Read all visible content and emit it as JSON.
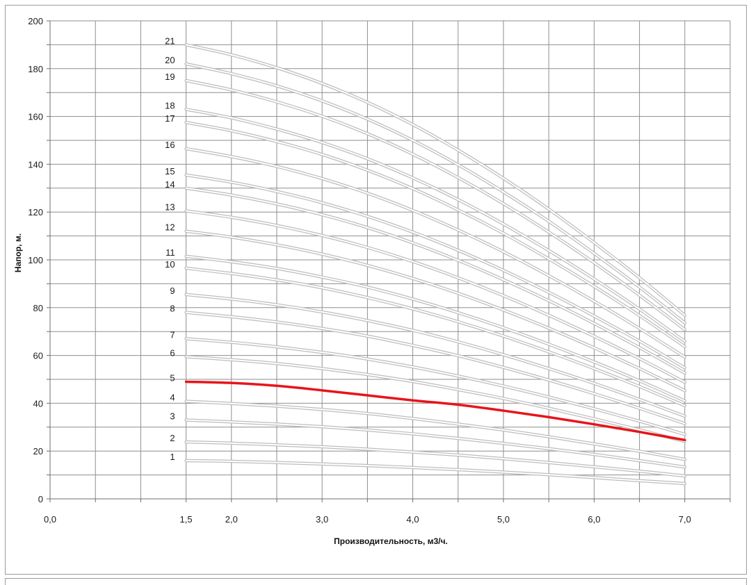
{
  "chart_data": {
    "type": "line",
    "xlabel": "Производительность, м3/ч.",
    "ylabel": "Напор, м.",
    "xlim": [
      0,
      7.5
    ],
    "ylim": [
      0,
      200
    ],
    "x_ticks": [
      "0,0",
      "1,5",
      "2,0",
      "3,0",
      "4,0",
      "5,0",
      "6,0",
      "7,0"
    ],
    "y_ticks": [
      "0",
      "20",
      "40",
      "60",
      "80",
      "100",
      "120",
      "140",
      "160",
      "180",
      "200"
    ],
    "grid": true,
    "highlight_color": "#e8141a",
    "curve_color": "#dcdcdc",
    "x": [
      1.5,
      2.0,
      2.5,
      3.0,
      3.5,
      4.0,
      4.5,
      5.0,
      5.5,
      6.0,
      6.5,
      7.0
    ],
    "series": [
      {
        "name": "1",
        "values": [
          16,
          15.7,
          15.2,
          14.6,
          13.9,
          13.1,
          12.2,
          11.2,
          10.1,
          8.9,
          7.6,
          6.4
        ]
      },
      {
        "name": "2",
        "values": [
          23.8,
          23.3,
          22.6,
          21.8,
          20.8,
          19.6,
          18.3,
          16.8,
          15.2,
          13.4,
          11.6,
          9.6
        ]
      },
      {
        "name": "3",
        "values": [
          33,
          32.2,
          31.3,
          30.2,
          28.8,
          27.2,
          25.3,
          23.2,
          21,
          18.6,
          16,
          13.3
        ]
      },
      {
        "name": "4",
        "values": [
          40.8,
          39.9,
          38.8,
          37.4,
          35.7,
          33.6,
          31.3,
          28.8,
          26,
          23,
          19.9,
          16.5
        ]
      },
      {
        "name": "5",
        "values": [
          49,
          48.5,
          47.3,
          45.4,
          43.3,
          41.2,
          39.4,
          36.9,
          34.2,
          31.2,
          28,
          24.6
        ]
      },
      {
        "name": "6",
        "values": [
          59.5,
          58.2,
          56.6,
          54.5,
          52,
          49.1,
          45.7,
          42,
          37.9,
          33.5,
          28.9,
          24
        ]
      },
      {
        "name": "7",
        "values": [
          67,
          65.5,
          63.6,
          61.3,
          58.5,
          55.2,
          51.4,
          47.2,
          42.6,
          37.7,
          32.5,
          27
        ]
      },
      {
        "name": "8",
        "values": [
          78,
          76.2,
          74,
          71.3,
          68.1,
          64.2,
          59.9,
          55,
          49.7,
          44,
          37.9,
          31.5
        ]
      },
      {
        "name": "9",
        "values": [
          85.5,
          83.6,
          81.2,
          78.2,
          74.6,
          70.5,
          65.7,
          60.3,
          54.5,
          48.3,
          41.6,
          34.6
        ]
      },
      {
        "name": "10",
        "values": [
          96.5,
          94.3,
          91.6,
          88.3,
          84.2,
          79.5,
          74.1,
          68.1,
          61.5,
          54.5,
          47,
          39
        ]
      },
      {
        "name": "11",
        "values": [
          101.5,
          99.2,
          96.4,
          92.8,
          88.6,
          83.6,
          77.9,
          71.6,
          64.7,
          57.3,
          49.4,
          41
        ]
      },
      {
        "name": "12",
        "values": [
          112,
          109.5,
          106.3,
          102.4,
          97.7,
          92.2,
          86,
          79,
          71.4,
          63.2,
          54.5,
          45.3
        ]
      },
      {
        "name": "13",
        "values": [
          120.5,
          117.8,
          114.4,
          110.2,
          105.2,
          99.3,
          92.5,
          85,
          76.8,
          68,
          58.7,
          48.8
        ]
      },
      {
        "name": "14",
        "values": [
          130,
          127.1,
          123.4,
          118.9,
          113.5,
          107.1,
          99.8,
          91.7,
          82.9,
          73.4,
          63.3,
          52.6
        ]
      },
      {
        "name": "15",
        "values": [
          135.5,
          132.5,
          128.6,
          123.9,
          118.2,
          111.6,
          104,
          95.6,
          86.4,
          76.5,
          66,
          54.8
        ]
      },
      {
        "name": "16",
        "values": [
          146.5,
          143.2,
          139.1,
          134,
          127.9,
          120.7,
          112.5,
          103.4,
          93.4,
          82.7,
          71.3,
          59.3
        ]
      },
      {
        "name": "17",
        "values": [
          157.5,
          154,
          149.5,
          144.1,
          137.5,
          129.8,
          120.9,
          111.1,
          100.4,
          88.9,
          76.7,
          63.7
        ]
      },
      {
        "name": "18",
        "values": [
          163,
          159.4,
          154.7,
          149.1,
          142.3,
          134.3,
          125.2,
          115,
          103.9,
          92,
          79.4,
          65.9
        ]
      },
      {
        "name": "19",
        "values": [
          175,
          171.1,
          166.1,
          160.1,
          152.8,
          144.2,
          134.4,
          123.5,
          111.6,
          98.8,
          85.2,
          70.8
        ]
      },
      {
        "name": "20",
        "values": [
          182,
          177.9,
          172.8,
          166.5,
          158.9,
          150,
          139.8,
          128.4,
          116.1,
          102.7,
          88.6,
          73.6
        ]
      },
      {
        "name": "21",
        "values": [
          190,
          185.8,
          180.4,
          173.8,
          165.9,
          156.6,
          145.9,
          134.1,
          121.2,
          107.2,
          92.5,
          76.8
        ]
      }
    ],
    "highlight_series": "5"
  }
}
